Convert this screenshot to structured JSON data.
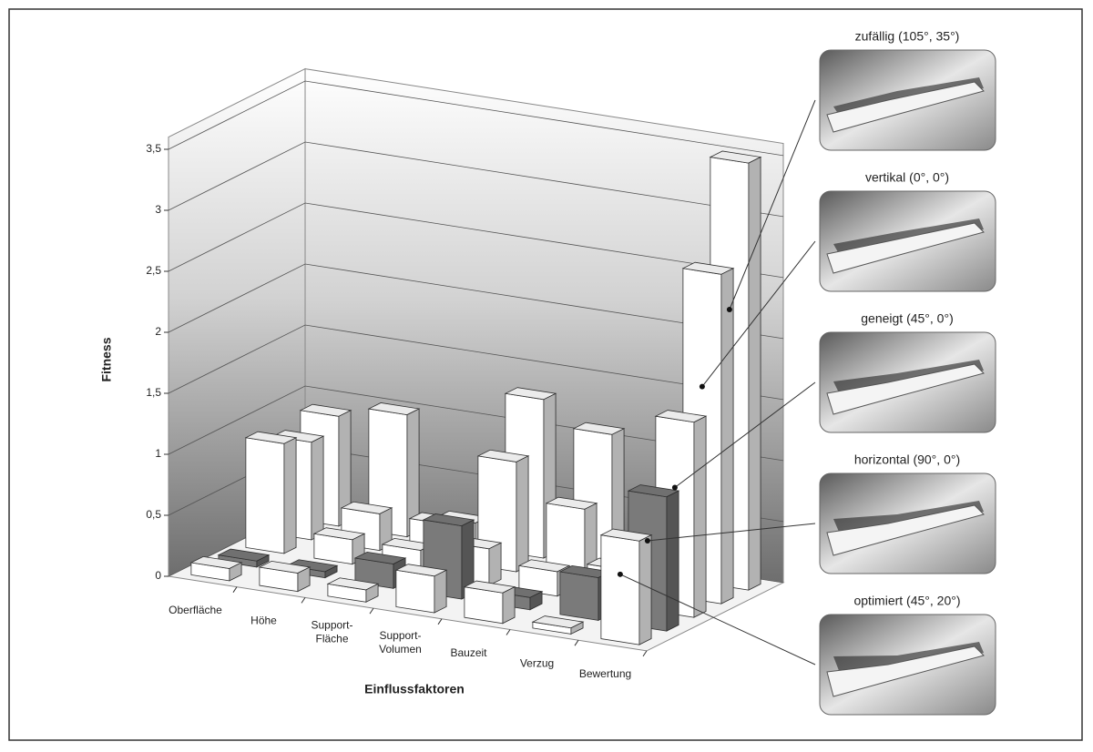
{
  "chart_data": {
    "type": "bar3d",
    "y_label": "Fitness",
    "x_label": "Einflussfaktoren",
    "categories": [
      "Oberfläche",
      "Höhe",
      "Support-\nFläche",
      "Support-\nVolumen",
      "Bauzeit",
      "Verzug",
      "Bewertung"
    ],
    "series": [
      {
        "name": "zufällig (105°, 35°)",
        "color": "#ffffff",
        "values": [
          0.9,
          1.0,
          0.2,
          1.3,
          1.1,
          0.3,
          3.5
        ]
      },
      {
        "name": "vertikal (0°, 0°)",
        "color": "#ffffff",
        "values": [
          0.8,
          0.3,
          0.3,
          0.9,
          0.6,
          0.15,
          2.7
        ]
      },
      {
        "name": "geneigt (45°, 0°)",
        "color": "#ffffff",
        "values": [
          0.9,
          0.2,
          0.2,
          0.3,
          0.2,
          0.3,
          1.6
        ]
      },
      {
        "name": "horizontal (90°, 0°)",
        "color": "#7a7a7a",
        "values": [
          0.05,
          0.05,
          0.2,
          0.6,
          0.1,
          0.35,
          1.1
        ]
      },
      {
        "name": "optimiert (45°, 20°)",
        "color": "#ffffff",
        "values": [
          0.1,
          0.15,
          0.1,
          0.3,
          0.25,
          0.05,
          0.85
        ]
      }
    ],
    "ylim": [
      0,
      3.6
    ],
    "yticks": [
      0,
      {
        "value": 0.5,
        "label": "0,5"
      },
      1,
      {
        "value": 1.5,
        "label": "1,5"
      },
      2,
      {
        "value": 2.5,
        "label": "2,5"
      },
      3,
      {
        "value": 3.5,
        "label": "3,5"
      }
    ],
    "grid": true
  }
}
